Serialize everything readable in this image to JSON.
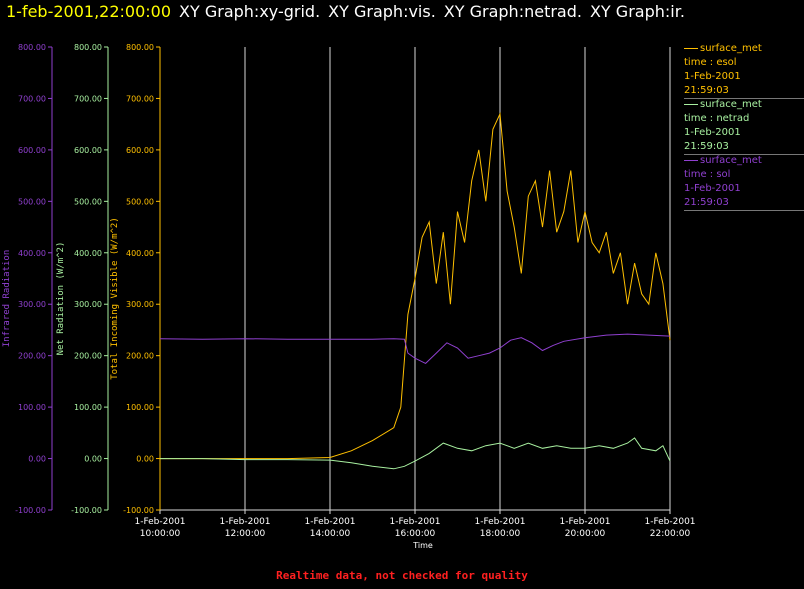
{
  "window": {
    "timestamp": "1-feb-2001,22:00:00",
    "graph_titles": [
      "XY Graph:xy-grid.",
      "XY Graph:vis.",
      "XY Graph:netrad.",
      "XY Graph:ir."
    ]
  },
  "colors": {
    "vis": "#ffc000",
    "netrad": "#a8f0a0",
    "ir": "#9040d0",
    "grid": "#d8d8d8",
    "footer": "#ff2020"
  },
  "footer_note": "Realtime data, not checked for quality",
  "chart_data": {
    "type": "line",
    "xlabel": "Time",
    "xlim": [
      "2001-02-01T10:00:00",
      "2001-02-01T22:00:00"
    ],
    "x_ticks": [
      {
        "date": "1-Feb-2001",
        "time": "10:00:00"
      },
      {
        "date": "1-Feb-2001",
        "time": "12:00:00"
      },
      {
        "date": "1-Feb-2001",
        "time": "14:00:00"
      },
      {
        "date": "1-Feb-2001",
        "time": "16:00:00"
      },
      {
        "date": "1-Feb-2001",
        "time": "18:00:00"
      },
      {
        "date": "1-Feb-2001",
        "time": "20:00:00"
      },
      {
        "date": "1-Feb-2001",
        "time": "22:00:00"
      }
    ],
    "grid": "vertical lines at x ticks",
    "legend_position": "top-right",
    "y_axes": [
      {
        "id": "ir",
        "label": "Infrared Radiation",
        "color": "#9040d0",
        "ylim": [
          -100,
          800
        ],
        "ticks": [
          "-100.00",
          "0.00",
          "100.00",
          "200.00",
          "300.00",
          "400.00",
          "500.00",
          "600.00",
          "700.00",
          "800.00"
        ]
      },
      {
        "id": "netrad",
        "label": "Net Radiation (W/m^2)",
        "color": "#a8f0a0",
        "ylim": [
          -100,
          800
        ],
        "ticks": [
          "-100.00",
          "0.00",
          "100.00",
          "200.00",
          "300.00",
          "400.00",
          "500.00",
          "600.00",
          "700.00",
          "800.00"
        ]
      },
      {
        "id": "vis",
        "label": "Total Incoming Visible (W/m^2)",
        "color": "#ffc000",
        "ylim": [
          -100,
          800
        ],
        "ticks": [
          "-100.00",
          "0.00",
          "100.00",
          "200.00",
          "300.00",
          "400.00",
          "500.00",
          "600.00",
          "700.00",
          "800.00"
        ]
      }
    ],
    "series": [
      {
        "axis": "vis",
        "legend": {
          "name": "surface_met",
          "variable": "time : esol",
          "date": "1-Feb-2001",
          "time": "21:59:03"
        },
        "x": [
          "10:00",
          "11:00",
          "12:00",
          "13:00",
          "14:00",
          "14:30",
          "15:00",
          "15:30",
          "15:40",
          "15:50",
          "16:00",
          "16:10",
          "16:20",
          "16:30",
          "16:40",
          "16:50",
          "17:00",
          "17:10",
          "17:20",
          "17:30",
          "17:40",
          "17:50",
          "18:00",
          "18:10",
          "18:20",
          "18:30",
          "18:40",
          "18:50",
          "19:00",
          "19:10",
          "19:20",
          "19:30",
          "19:40",
          "19:50",
          "20:00",
          "20:10",
          "20:20",
          "20:30",
          "20:40",
          "20:50",
          "21:00",
          "21:10",
          "21:20",
          "21:30",
          "21:40",
          "21:50",
          "22:00"
        ],
        "y": [
          0,
          0,
          0,
          0,
          2,
          15,
          35,
          60,
          100,
          280,
          350,
          430,
          460,
          340,
          440,
          300,
          480,
          420,
          540,
          600,
          500,
          640,
          670,
          520,
          450,
          360,
          510,
          540,
          450,
          560,
          440,
          480,
          560,
          420,
          480,
          420,
          400,
          440,
          360,
          400,
          300,
          380,
          320,
          300,
          400,
          340,
          230
        ]
      },
      {
        "axis": "netrad",
        "legend": {
          "name": "surface_met",
          "variable": "time : netrad",
          "date": "1-Feb-2001",
          "time": "21:59:03"
        },
        "x": [
          "10:00",
          "11:00",
          "12:00",
          "13:00",
          "14:00",
          "14:30",
          "15:00",
          "15:30",
          "15:45",
          "16:00",
          "16:20",
          "16:40",
          "17:00",
          "17:20",
          "17:40",
          "18:00",
          "18:20",
          "18:40",
          "19:00",
          "19:20",
          "19:40",
          "20:00",
          "20:20",
          "20:40",
          "21:00",
          "21:10",
          "21:20",
          "21:40",
          "21:50",
          "22:00"
        ],
        "y": [
          0,
          0,
          -2,
          -2,
          -3,
          -8,
          -15,
          -20,
          -15,
          -5,
          10,
          30,
          20,
          15,
          25,
          30,
          20,
          30,
          20,
          25,
          20,
          20,
          25,
          20,
          30,
          40,
          20,
          15,
          25,
          -5
        ]
      },
      {
        "axis": "ir",
        "legend": {
          "name": "surface_met",
          "variable": "time : sol",
          "date": "1-Feb-2001",
          "time": "21:59:03"
        },
        "x": [
          "10:00",
          "11:00",
          "12:00",
          "13:00",
          "14:00",
          "15:00",
          "15:30",
          "15:45",
          "15:50",
          "16:00",
          "16:15",
          "16:30",
          "16:45",
          "17:00",
          "17:15",
          "17:30",
          "17:45",
          "18:00",
          "18:15",
          "18:30",
          "18:45",
          "19:00",
          "19:15",
          "19:30",
          "20:00",
          "20:30",
          "21:00",
          "21:30",
          "22:00"
        ],
        "y": [
          233,
          232,
          233,
          232,
          232,
          232,
          233,
          232,
          205,
          195,
          185,
          205,
          225,
          215,
          195,
          200,
          205,
          215,
          230,
          235,
          225,
          210,
          220,
          228,
          235,
          240,
          242,
          240,
          238
        ]
      }
    ]
  }
}
